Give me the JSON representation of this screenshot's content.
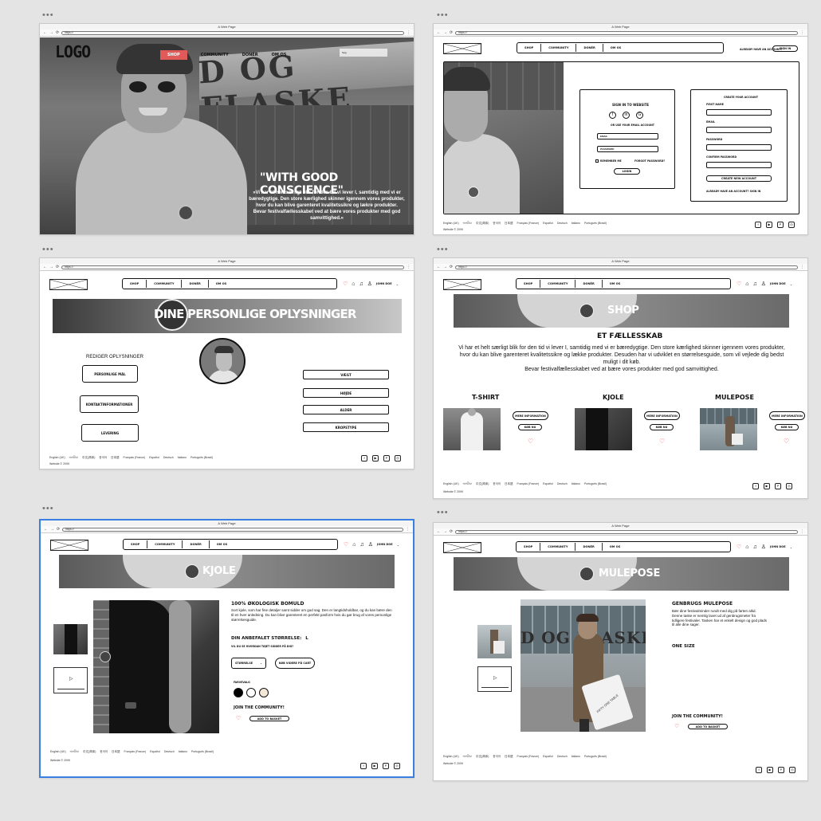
{
  "browser": {
    "title": "A Web Page",
    "url": "https://"
  },
  "frame1": {
    "logo": "LOGO",
    "nav": [
      "SHOP",
      "COMMUNITY",
      "DONÉR",
      "OM OS"
    ],
    "search_placeholder": "Søg",
    "hero_sign": "D OG FLASKE",
    "heading": "\"WITH GOOD CONSCIENCE\"",
    "body": "»Vi har et helt særligt blik for den tid vi lever I, samtidig med vi er bæredygtige. Den store kærlighed skinner igennem vores produkter, hvor du kan blive garenteret kvalitetssikre og lækre produkter.",
    "body2": "Bevar festivalfællesskabet ved at bære vores produkter med god samvittighed.«"
  },
  "frame2": {
    "nav": [
      "SHOP",
      "COMMUNITY",
      "DONÉR",
      "OM OS"
    ],
    "already": "ALREADY HAVE AN ACCOUNT?",
    "signin_btn": "SIGN IN",
    "signin": {
      "title": "SIGN IN TO WEBSITE",
      "or": "OR USE YOUR EMAIL ACCOUNT",
      "email": "EMAIL",
      "password": "PASSWORD",
      "remember": "REMEMBER ME",
      "forgot": "FORGOT PASSWORD?",
      "login": "LOGIN"
    },
    "create": {
      "title": "CREATE YOUR ACCOUNT",
      "first": "FIRST NAME",
      "email": "EMAIL",
      "password": "PASSWORD",
      "confirm": "CONFIRM PASSWORD",
      "btn": "CREATE NEW ACCOUNT",
      "already": "ALREADY HAVE AN ACCOUNT? SIGN IN"
    }
  },
  "frame3": {
    "nav": [
      "SHOP",
      "COMMUNITY",
      "DONÉR",
      "OM OS"
    ],
    "user": "JOHN DOE",
    "banner": "DINE PERSONLIGE OPLYSNINGER",
    "edit": "REDIGER OPLYSNINGER",
    "left_buttons": [
      "PERSONLIGE MÅL",
      "KONTAKTINFORMATIONER",
      "LEVERING"
    ],
    "right_buttons": [
      "VÆGT",
      "HØJDE",
      "ALDER",
      "KROPSTYPE"
    ]
  },
  "frame4": {
    "nav": [
      "SHOP",
      "COMMUNITY",
      "DONÉR",
      "OM OS"
    ],
    "user": "JOHN DOE",
    "banner": "SHOP",
    "heading": "ET FÆLLESSKAB",
    "body": "Vi har et helt særligt blik for den tid vi lever I, samtidig med vi er bæredygtige. Den store kærlighed skinner igennem vores produkter, hvor du kan blive garenteret kvalitetssikre og lække produkter. Desuden har vi udviklet en størrelsesguide, som vil vejlede dig bedst muligt i dit køb.",
    "body2": "Bevar festivalfællesskabet ved at bære vores produkter med god samvittighed.",
    "products": [
      {
        "name": "T-SHIRT",
        "more": "MERE INFORMATION",
        "buy": "KØB NU"
      },
      {
        "name": "KJOLE",
        "more": "MERE INFORMATION",
        "buy": "KØB NU"
      },
      {
        "name": "MULEPOSE",
        "more": "MERE INFORMATION",
        "buy": "KØB NU"
      }
    ]
  },
  "frame5": {
    "nav": [
      "SHOP",
      "COMMUNITY",
      "DONÉR",
      "OM OS"
    ],
    "user": "JOHN DOE",
    "banner": "KJOLE",
    "heading": "100% ØKOLOGISK BOMULD",
    "body": "Sort kjole, som har fine detaljer samt sidder om god sag. Den er langtidsholdbar, og du kan bære den til en hver anledning. Du kan blive garenteret en perfekt pasform hvis du gør brug af vores personlige størrelsesguide.",
    "size_label": "DIN ANBEFALET STØRRELSE:",
    "size": "L",
    "guide_link": "VIL DU SE HVORDAN TØJET SIDDER PÅ DIG?",
    "size_select": "STØRRELSE",
    "cart": "KØB VIDERE PÅ CART",
    "colors_label": "FARVEVALG",
    "colors": [
      "#000000",
      "#ffffff",
      "#f3e8d8"
    ],
    "join": "JOIN THE COMMUNITY!",
    "add": "ADD TO BASKET"
  },
  "frame6": {
    "nav": [
      "SHOP",
      "COMMUNITY",
      "DONÉR",
      "OM OS"
    ],
    "user": "JOHN DOE",
    "banner": "MULEPOSE",
    "heading": "GENBRUGS MULEPOSE",
    "body": "Bær dine festivalminder rundt med dig på farten altid. Denne taske er nemlig lavet ud af genbrugsmeter fra tidligere festivaler. Tasken har et enkelt design og god plads til alle dine sager.",
    "size": "ONE SIZE",
    "join": "JOIN THE COMMUNITY!",
    "add": "ADD TO BASKET",
    "bag_text": "FIFTY ONE TABLE"
  },
  "footer": {
    "langs": [
      "English (UK)",
      "অসমীয়া",
      "中文(简体)",
      "한국어",
      "日本語",
      "Français (France)",
      "Español",
      "Deutsch",
      "Italiano",
      "Português (Brasil)"
    ],
    "copy": "Website © 2099"
  },
  "colors": {
    "accent": "#e05a5a",
    "selected_border": "#3b7fe3"
  }
}
